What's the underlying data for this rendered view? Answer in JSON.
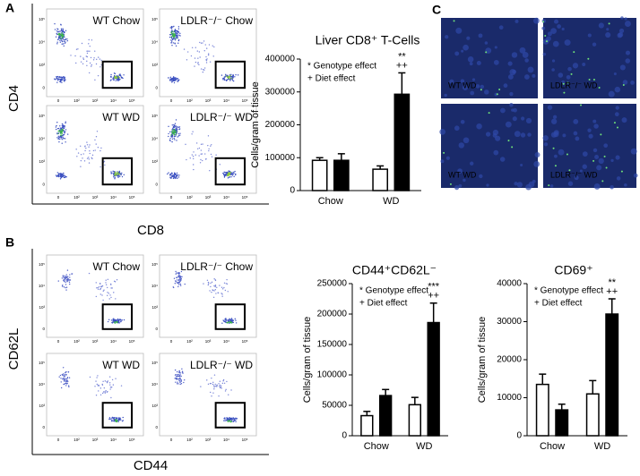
{
  "panels": {
    "a": "A",
    "b": "B",
    "c": "C"
  },
  "flow_a": {
    "y_label": "CD4",
    "x_label": "CD8",
    "plots": [
      "WT Chow",
      "LDLR⁻/⁻ Chow",
      "WT WD",
      "LDLR⁻/⁻ WD"
    ]
  },
  "flow_b": {
    "y_label": "CD62L",
    "x_label": "CD44",
    "plots": [
      "WT Chow",
      "LDLR⁻/⁻ Chow",
      "WT WD",
      "LDLR⁻/⁻ WD"
    ]
  },
  "flow_ticks": {
    "y": [
      "10⁵",
      "10⁴",
      "10³",
      "0"
    ],
    "x": [
      "0",
      "10²",
      "10³",
      "10⁴",
      "10⁵"
    ]
  },
  "micrographs": [
    "WT WD",
    "LDLR⁻/⁻ WD",
    "WT WD",
    "LDLR⁻/⁻ WD"
  ],
  "chart_data": [
    {
      "type": "bar",
      "title": "Liver CD8⁺ T-Cells",
      "y_label": "Cells/gram of tissue",
      "categories": [
        "Chow",
        "WD"
      ],
      "series": [
        {
          "color": "#ffffff",
          "values": [
            92000,
            65000
          ],
          "errors": [
            8000,
            10000
          ]
        },
        {
          "color": "#000000",
          "values": [
            92000,
            293000
          ],
          "errors": [
            20000,
            65000
          ]
        }
      ],
      "ylim": [
        0,
        400000
      ],
      "yticks": [
        0,
        100000,
        200000,
        300000,
        400000
      ],
      "notes": [
        "* Genotype effect",
        "+ Diet effect"
      ],
      "annotations": [
        "**",
        "++"
      ]
    },
    {
      "type": "bar",
      "title": "CD44⁺CD62L⁻",
      "y_label": "Cells/gram of tissue",
      "categories": [
        "Chow",
        "WD"
      ],
      "series": [
        {
          "color": "#ffffff",
          "values": [
            33000,
            51000
          ],
          "errors": [
            7000,
            12000
          ]
        },
        {
          "color": "#000000",
          "values": [
            66000,
            186000
          ],
          "errors": [
            10000,
            32000
          ]
        }
      ],
      "ylim": [
        0,
        250000
      ],
      "yticks": [
        0,
        50000,
        100000,
        150000,
        200000,
        250000
      ],
      "notes": [
        "* Genotype effect",
        "+ Diet effect"
      ],
      "annotations": [
        "***",
        "++"
      ]
    },
    {
      "type": "bar",
      "title": "CD69⁺",
      "y_label": "Cells/gram of tissue",
      "categories": [
        "Chow",
        "WD"
      ],
      "series": [
        {
          "color": "#ffffff",
          "values": [
            13500,
            11000
          ],
          "errors": [
            2700,
            3500
          ]
        },
        {
          "color": "#000000",
          "values": [
            6800,
            32000
          ],
          "errors": [
            1500,
            4000
          ]
        }
      ],
      "ylim": [
        0,
        40000
      ],
      "yticks": [
        0,
        10000,
        20000,
        30000,
        40000
      ],
      "notes": [
        "* Genotype effect",
        "+ Diet effect"
      ],
      "annotations": [
        "**",
        "++"
      ]
    }
  ]
}
